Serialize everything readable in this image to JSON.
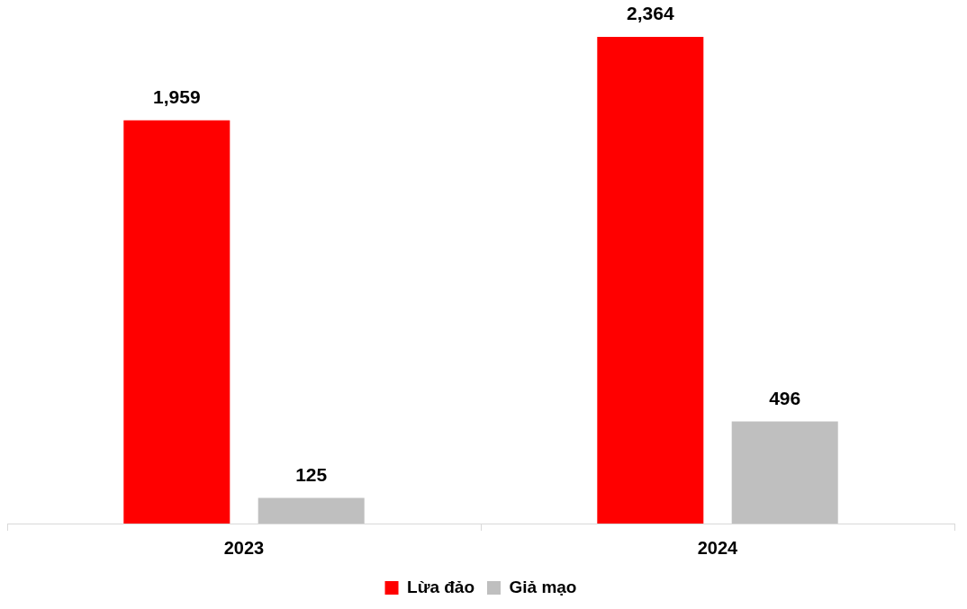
{
  "chart_data": {
    "type": "bar",
    "categories": [
      "2023",
      "2024"
    ],
    "series": [
      {
        "name": "Lừa đảo",
        "color": "#ff0000",
        "values": [
          1959,
          2364
        ],
        "value_labels": [
          "1,959",
          "2,364"
        ]
      },
      {
        "name": "Giả mạo",
        "color": "#bfbfbf",
        "values": [
          125,
          496
        ],
        "value_labels": [
          "125",
          "496"
        ]
      }
    ],
    "legend": "bottom",
    "tick_labels": "x"
  }
}
